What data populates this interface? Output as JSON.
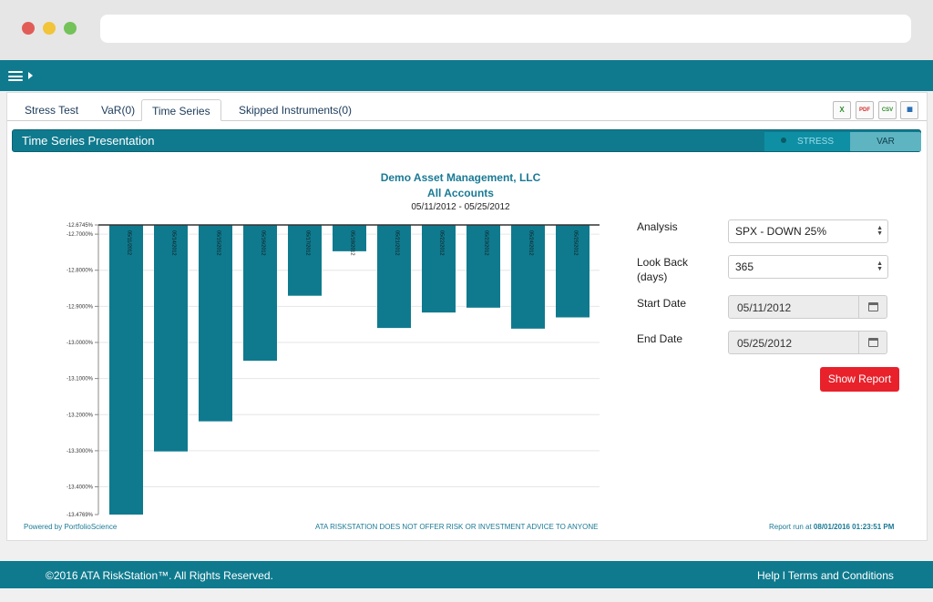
{
  "tabs": [
    {
      "label": "Stress Test",
      "active": false
    },
    {
      "label": "VaR(0)",
      "active": false
    },
    {
      "label": "Time Series",
      "active": true
    },
    {
      "label": "Skipped Instruments(0)",
      "active": false
    }
  ],
  "exports": [
    {
      "icon": "excel-export-icon",
      "glyph": "X",
      "color": "#2e8b2e"
    },
    {
      "icon": "pdf-export-icon",
      "glyph": "PDF",
      "color": "#d42d2d"
    },
    {
      "icon": "csv-export-icon",
      "glyph": "CSV",
      "color": "#2e8b2e"
    },
    {
      "icon": "chart-export-icon",
      "glyph": "▮▮",
      "color": "#2a6fb5"
    }
  ],
  "panel": {
    "title": "Time Series Presentation",
    "toggle": {
      "stress": "STRESS",
      "var": "VAR",
      "selected": "STRESS"
    }
  },
  "chart_header": {
    "company": "Demo Asset Management, LLC",
    "accounts": "All Accounts",
    "range": "05/11/2012 - 05/25/2012"
  },
  "chart_data": {
    "type": "bar",
    "categories": [
      "05/11/2012",
      "05/14/2012",
      "05/15/2012",
      "05/16/2012",
      "05/17/2012",
      "05/18/2012",
      "05/21/2012",
      "05/22/2012",
      "05/23/2012",
      "05/24/2012",
      "05/25/2012"
    ],
    "values": [
      -13.4769,
      -13.302,
      -13.2186,
      -13.0508,
      -12.8706,
      -12.7474,
      -12.9599,
      -12.9171,
      -12.9037,
      -12.9618,
      -12.9306
    ],
    "yticks": [
      "-12.6745%",
      "-12.7000%",
      "-12.8000%",
      "-12.9000%",
      "-13.0000%",
      "-13.1000%",
      "-13.2000%",
      "-13.3000%",
      "-13.4000%",
      "-13.4769%"
    ],
    "ylim": [
      -13.4769,
      -12.6745
    ],
    "grid": true,
    "color": "#0f7a8e"
  },
  "chart_footer": {
    "powered": "Powered by PortfolioScience",
    "disclaimer": "ATA RISKSTATION DOES NOT OFFER RISK OR INVESTMENT ADVICE TO ANYONE",
    "report_prefix": "Report run at ",
    "report_time": "08/01/2016 01:23:51 PM"
  },
  "form": {
    "analysis_label": "Analysis",
    "analysis_value": "SPX - DOWN 25%",
    "lookback_label_1": "Look Back",
    "lookback_label_2": "(days)",
    "lookback_value": "365",
    "start_label": "Start Date",
    "start_value": "05/11/2012",
    "end_label": "End Date",
    "end_value": "05/25/2012",
    "show_button": "Show Report"
  },
  "footer": {
    "copyright": "©2016 ATA RiskStation™. All Rights Reserved.",
    "help": "Help",
    "separator": " l ",
    "terms": "Terms and Conditions"
  }
}
